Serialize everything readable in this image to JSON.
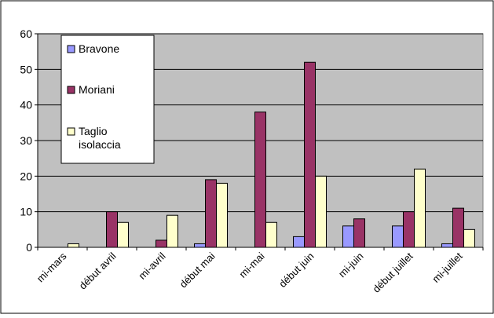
{
  "chart_data": {
    "type": "bar",
    "categories": [
      "mi-mars",
      "début avril",
      "mi-avril",
      "début mai",
      "mi-mai",
      "début juin",
      "mi-juin",
      "début juillet",
      "mi-juillet"
    ],
    "series": [
      {
        "name": "Bravone",
        "values": [
          0,
          0,
          0,
          1,
          0,
          3,
          6,
          6,
          1
        ],
        "color": "#9999ff"
      },
      {
        "name": "Moriani",
        "values": [
          0,
          10,
          2,
          19,
          38,
          52,
          8,
          10,
          11
        ],
        "color": "#993366"
      },
      {
        "name": "Taglio isolaccia",
        "values": [
          1,
          7,
          9,
          18,
          7,
          20,
          0,
          22,
          5
        ],
        "color": "#ffffcc"
      }
    ],
    "ylim": [
      0,
      60
    ],
    "yticks": [
      "0",
      "10",
      "20",
      "30",
      "40",
      "50",
      "60"
    ],
    "grid": true,
    "plot_background": "#c0c0c0",
    "legend_position": "top-left"
  }
}
